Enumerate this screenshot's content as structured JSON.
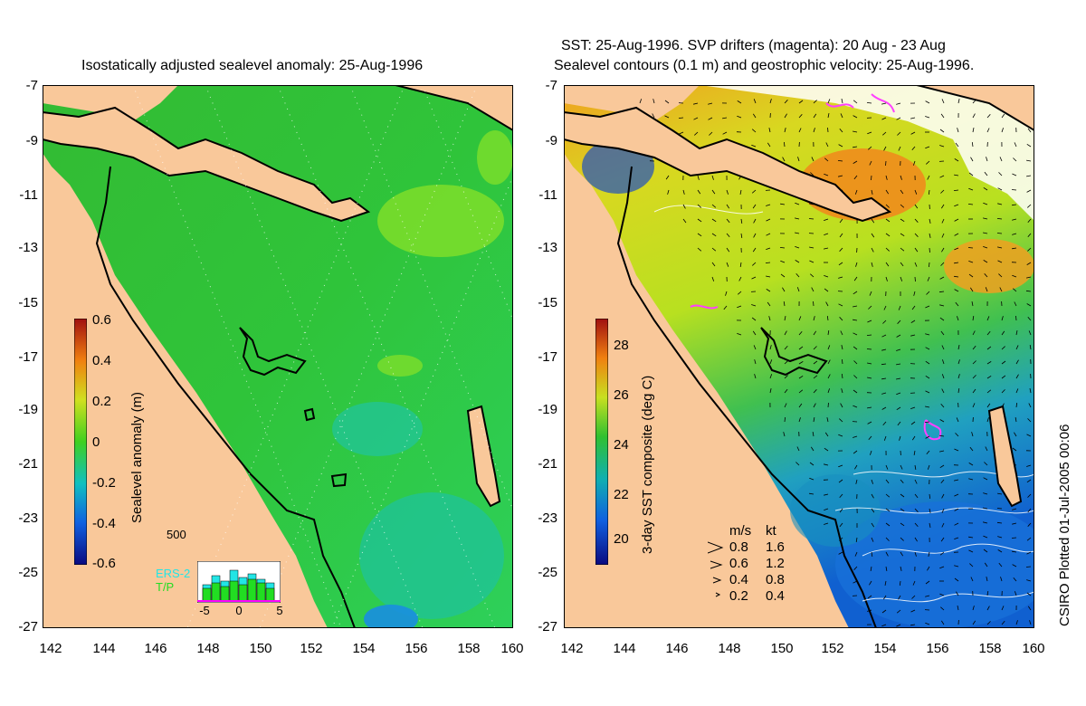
{
  "left_panel": {
    "title": "Isostatically adjusted sealevel anomaly: 25-Aug-1996",
    "y_ticks": [
      "-7",
      "-9",
      "-11",
      "-13",
      "-15",
      "-17",
      "-19",
      "-21",
      "-23",
      "-25",
      "-27"
    ],
    "x_ticks": [
      "142",
      "144",
      "146",
      "148",
      "150",
      "152",
      "154",
      "156",
      "158",
      "160"
    ],
    "colorbar": {
      "label": "Sealevel anomaly (m)",
      "ticks": [
        "0.6",
        "0.4",
        "0.2",
        "0",
        "-0.2",
        "-0.4",
        "-0.6"
      ]
    },
    "histogram": {
      "ymax_label": "500",
      "x_ticks": [
        "-5",
        "0",
        "5"
      ],
      "legend_ers": "ERS-2",
      "legend_tp": "T/P",
      "ers_color": "#22e5e5",
      "tp_color": "#22dd22"
    }
  },
  "right_panel": {
    "title_line1": "SST: 25-Aug-1996. SVP drifters (magenta): 20 Aug - 23 Aug",
    "title_line2": "Sealevel contours (0.1 m) and geostrophic velocity: 25-Aug-1996.",
    "y_ticks": [
      "-7",
      "-9",
      "-11",
      "-13",
      "-15",
      "-17",
      "-19",
      "-21",
      "-23",
      "-25",
      "-27"
    ],
    "x_ticks": [
      "142",
      "144",
      "146",
      "148",
      "150",
      "152",
      "154",
      "156",
      "158",
      "160"
    ],
    "colorbar": {
      "label": "3-day SST composite (deg C)",
      "ticks": [
        "28",
        "26",
        "24",
        "22",
        "20"
      ]
    },
    "velocity_legend": {
      "header_ms": "m/s",
      "header_kt": "kt",
      "rows": [
        {
          "ms": "0.8",
          "kt": "1.6"
        },
        {
          "ms": "0.6",
          "kt": "1.2"
        },
        {
          "ms": "0.4",
          "kt": "0.8"
        },
        {
          "ms": "0.2",
          "kt": "0.4"
        }
      ]
    }
  },
  "credit": "CSIRO Plotted 01-Jul-2005 00:06",
  "colors": {
    "land": "#f9c89a",
    "ocean_mid": "#22cc22",
    "ocean_deep_green": "#33bb55",
    "sst_warm": "#f0a020",
    "sst_yellow": "#c8e020",
    "sst_cool": "#2080e0",
    "coast": "#000000"
  }
}
